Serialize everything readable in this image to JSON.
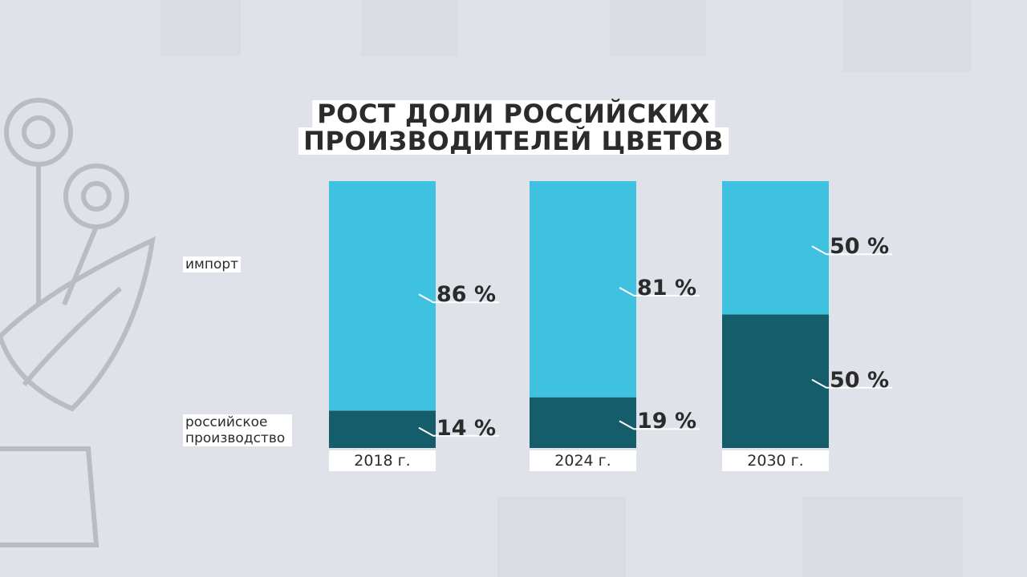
{
  "chart_data": {
    "type": "stacked-bar",
    "title": [
      "РОСТ ДОЛИ РОССИЙСКИХ",
      "ПРОИЗВОДИТЕЛЕЙ ЦВЕТОВ"
    ],
    "categories": [
      "2018 г.",
      "2024 г.",
      "2030 г."
    ],
    "ylim": [
      0,
      100
    ],
    "series": [
      {
        "name": "российское производство",
        "color": "#155d6b",
        "values": [
          14,
          19,
          50
        ],
        "value_labels": [
          "14 %",
          "19 %",
          "50 %"
        ]
      },
      {
        "name": "импорт",
        "color": "#3fc1e0",
        "values": [
          86,
          81,
          50
        ],
        "value_labels": [
          "86 %",
          "81 %",
          "50 %"
        ]
      }
    ]
  }
}
